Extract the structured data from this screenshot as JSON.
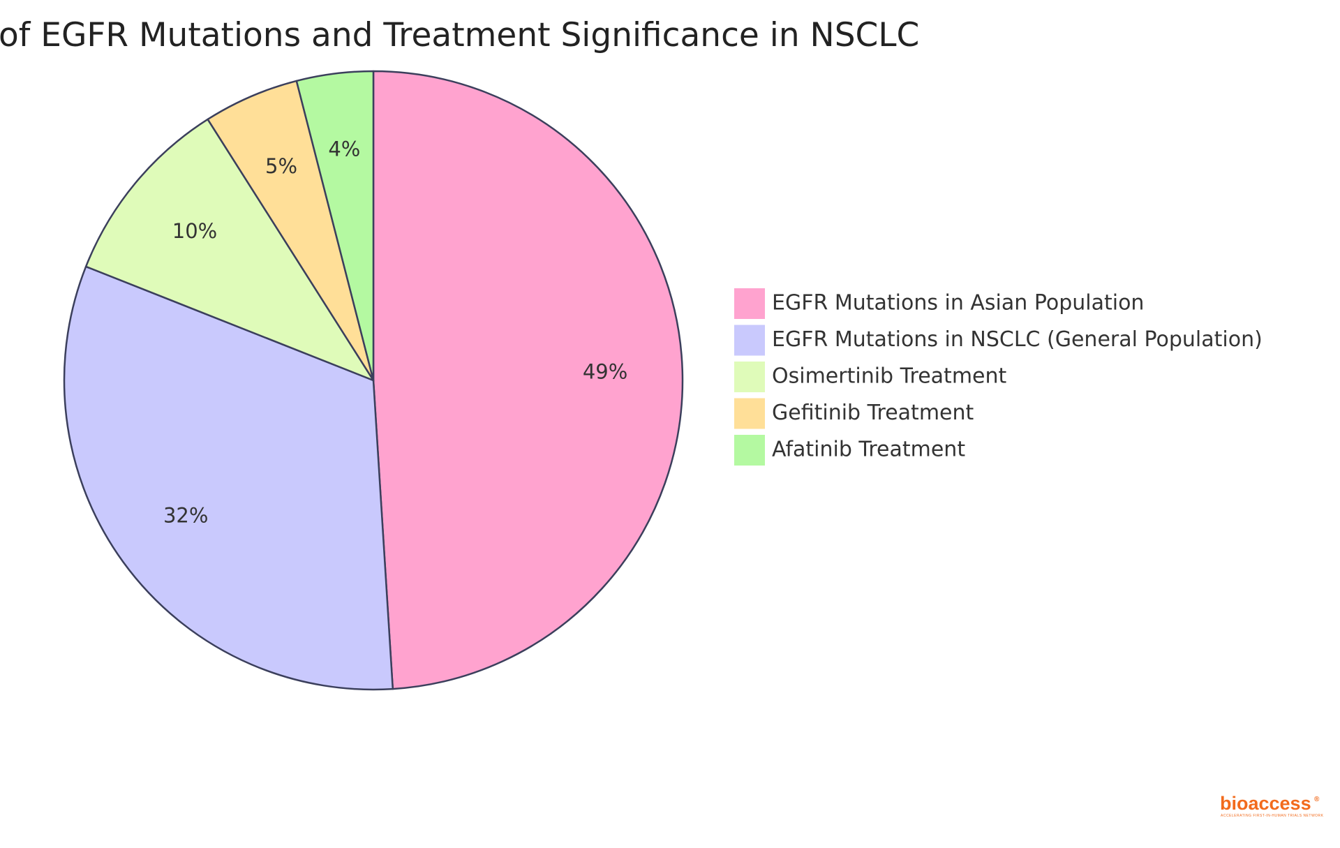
{
  "chart_data": {
    "type": "pie",
    "title": "of EGFR Mutations and Treatment Significance in NSCLC",
    "slices": [
      {
        "label": "EGFR Mutations in Asian Population",
        "value": 49,
        "display": "49%",
        "color": "#FFA3CF"
      },
      {
        "label": "EGFR Mutations in NSCLC (General Population)",
        "value": 32,
        "display": "32%",
        "color": "#C9C9FD"
      },
      {
        "label": "Osimertinib Treatment",
        "value": 10,
        "display": "10%",
        "color": "#DFFBB9"
      },
      {
        "label": "Gefitinib Treatment",
        "value": 5,
        "display": "5%",
        "color": "#FFDF98"
      },
      {
        "label": "Afatinib Treatment",
        "value": 4,
        "display": "4%",
        "color": "#B4F9A1"
      }
    ],
    "legend_position": "right",
    "stroke_color": "#3B3F5C"
  },
  "logo": {
    "text": "bioaccess",
    "registered_mark": "®",
    "tagline": "ACCELERATING FIRST-IN-HUMAN TRIALS NETWORK"
  }
}
